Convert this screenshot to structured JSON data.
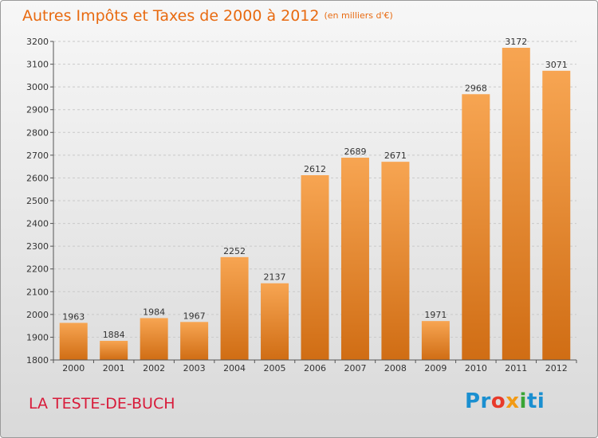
{
  "header": {
    "title": "Autres Impôts et Taxes de 2000 à 2012",
    "unit": "(en milliers d'€)"
  },
  "footer": {
    "town": "LA TESTE-DE-BUCH",
    "logo": [
      "Pr",
      "o",
      "x",
      "i",
      "ti"
    ]
  },
  "colors": {
    "bar_top": "#f7a552",
    "bar_bottom": "#d06d14",
    "title": "#e86a10",
    "town": "#d81b3a"
  },
  "chart_data": {
    "type": "bar",
    "title": "Autres Impôts et Taxes de 2000 à 2012",
    "categories": [
      "2000",
      "2001",
      "2002",
      "2003",
      "2004",
      "2005",
      "2006",
      "2007",
      "2008",
      "2009",
      "2010",
      "2011",
      "2012"
    ],
    "values": [
      1963,
      1884,
      1984,
      1967,
      2252,
      2137,
      2612,
      2689,
      2671,
      1971,
      2968,
      3172,
      3071
    ],
    "ylim": [
      1800,
      3200
    ],
    "yticks": [
      1800,
      1900,
      2000,
      2100,
      2200,
      2300,
      2400,
      2500,
      2600,
      2700,
      2800,
      2900,
      3000,
      3100,
      3200
    ],
    "grid": true,
    "xlabel": "",
    "ylabel": ""
  }
}
